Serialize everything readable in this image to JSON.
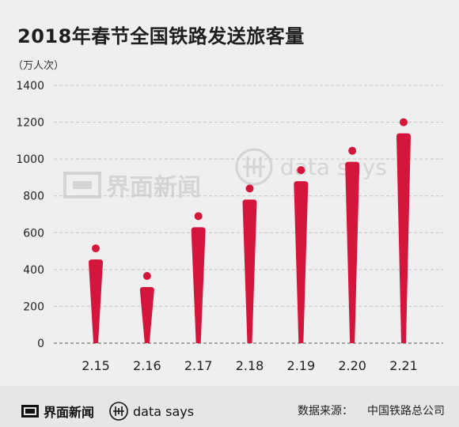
{
  "title": "2018年春节全国铁路发送旅客量",
  "unit_label": "（万人次）",
  "watermark": {
    "left": "界面新闻",
    "right": "data says"
  },
  "footer": {
    "brand_left": "界面新闻",
    "brand_right": "data says",
    "source_label": "数据来源：",
    "source_value": "中国铁路总公司"
  },
  "colors": {
    "bar": "#d5163c",
    "grid": "#c4c4c4",
    "axis": "#555555"
  },
  "chart_data": {
    "type": "bar",
    "categories": [
      "2.15",
      "2.16",
      "2.17",
      "2.18",
      "2.19",
      "2.20",
      "2.21"
    ],
    "values": [
      515,
      365,
      690,
      840,
      940,
      1045,
      1200
    ],
    "ylim": [
      0,
      1400
    ],
    "yticks": [
      "0",
      "200",
      "400",
      "600",
      "800",
      "1000",
      "1200",
      "1400"
    ],
    "grid": true,
    "grid_style": "dashed"
  }
}
